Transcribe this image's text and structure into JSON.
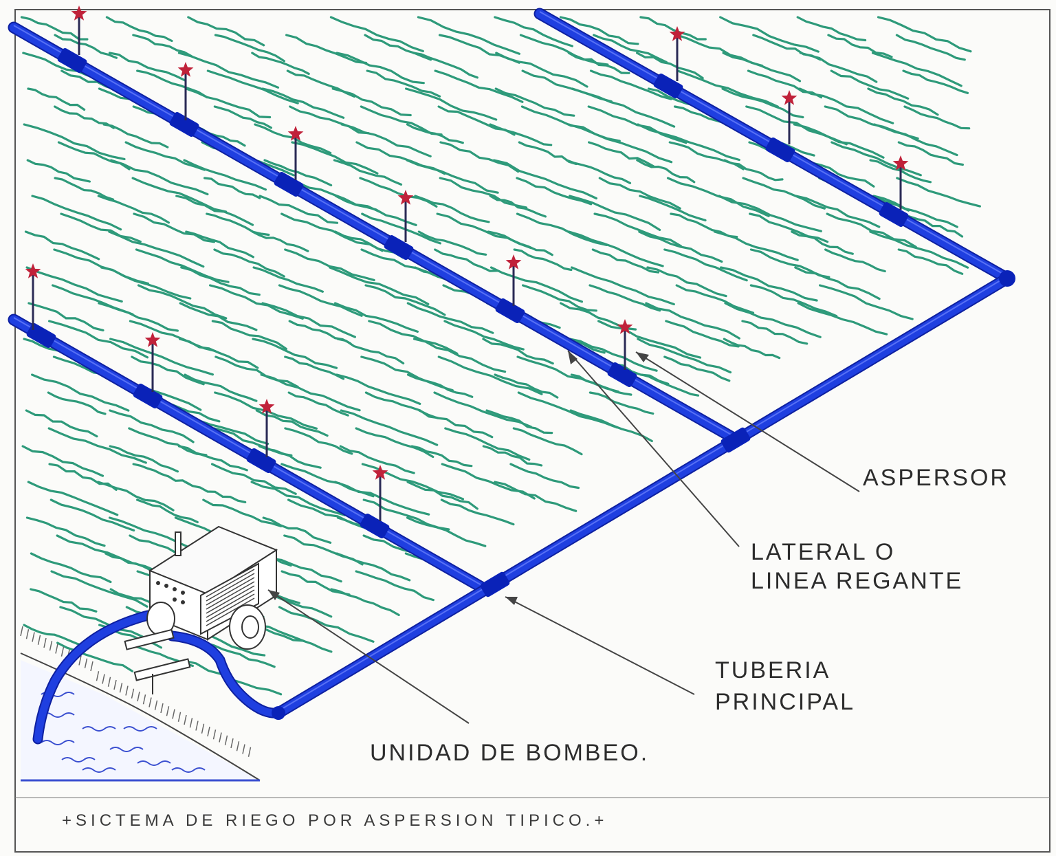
{
  "labels": {
    "aspersor": "ASPERSOR",
    "lateral_line1": "LATERAL  O",
    "lateral_line2": "LINEA  REGANTE",
    "tuberia_line1": "TUBERIA",
    "tuberia_line2": "PRINCIPAL",
    "unidad": "UNIDAD  DE  BOMBEO."
  },
  "caption": "+SICTEMA  DE  RIEGO  POR  ASPERSION  TIPICO.+",
  "colors": {
    "pipe": "#1f3fe0",
    "pipe_joint": "#0a22b8",
    "crop": "#2e9a7a",
    "sprinkler": "#c0223a",
    "water": "#3a4fd0",
    "ink": "#333333"
  }
}
